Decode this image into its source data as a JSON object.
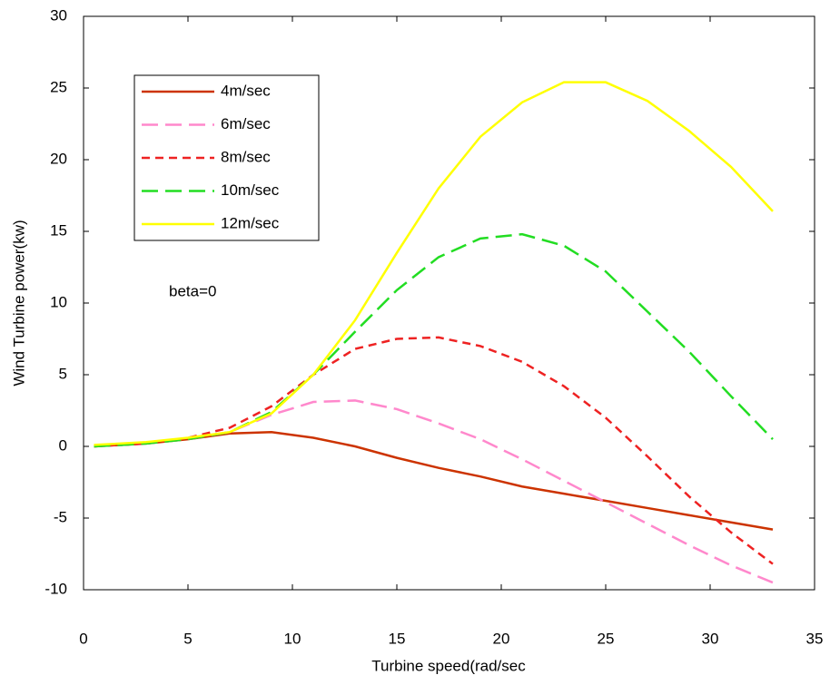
{
  "chart_data": {
    "type": "line",
    "x_label": "Turbine speed(rad/sec",
    "y_label": "Wind Turbine power(kw)",
    "annotation": "beta=0",
    "x": [
      0.5,
      3,
      5,
      7,
      9,
      11,
      13,
      15,
      17,
      19,
      21,
      23,
      25,
      27,
      29,
      31,
      33
    ],
    "series": [
      {
        "name": "4m/sec",
        "color": "#cc3300",
        "dash": "solid",
        "values": [
          0,
          0.2,
          0.5,
          0.9,
          1.0,
          0.6,
          0,
          -0.8,
          -1.5,
          -2.1,
          -2.8,
          -3.3,
          -3.8,
          -4.3,
          -4.8,
          -5.3,
          -5.8
        ]
      },
      {
        "name": "6m/sec",
        "color": "#ff88cc",
        "dash": "long",
        "values": [
          0,
          0.2,
          0.5,
          1.0,
          2.2,
          3.1,
          3.2,
          2.6,
          1.6,
          0.5,
          -0.9,
          -2.4,
          -3.9,
          -5.4,
          -6.9,
          -8.3,
          -9.5
        ]
      },
      {
        "name": "8m/sec",
        "color": "#ee2222",
        "dash": "short",
        "values": [
          0,
          0.2,
          0.6,
          1.3,
          2.8,
          5.0,
          6.8,
          7.5,
          7.6,
          7.0,
          5.9,
          4.2,
          2.0,
          -0.7,
          -3.5,
          -6.0,
          -8.2
        ]
      },
      {
        "name": "10m/sec",
        "color": "#22dd22",
        "dash": "long",
        "values": [
          0,
          0.2,
          0.5,
          1.0,
          2.4,
          5.0,
          8.0,
          10.9,
          13.2,
          14.5,
          14.8,
          14.0,
          12.2,
          9.4,
          6.6,
          3.5,
          0.5
        ]
      },
      {
        "name": "12m/sec",
        "color": "#ffff00",
        "dash": "solid",
        "values": [
          0.1,
          0.3,
          0.6,
          1.0,
          2.3,
          5.0,
          8.8,
          13.5,
          18.0,
          21.6,
          24.0,
          25.4,
          25.4,
          24.1,
          22.0,
          19.5,
          16.4
        ]
      }
    ],
    "xlim": [
      0,
      35
    ],
    "xticks": [
      0,
      5,
      10,
      15,
      20,
      25,
      30,
      35
    ],
    "ylim": [
      -10,
      30
    ],
    "yticks": [
      -10,
      -5,
      0,
      5,
      10,
      15,
      20,
      25,
      30
    ],
    "grid": false
  }
}
